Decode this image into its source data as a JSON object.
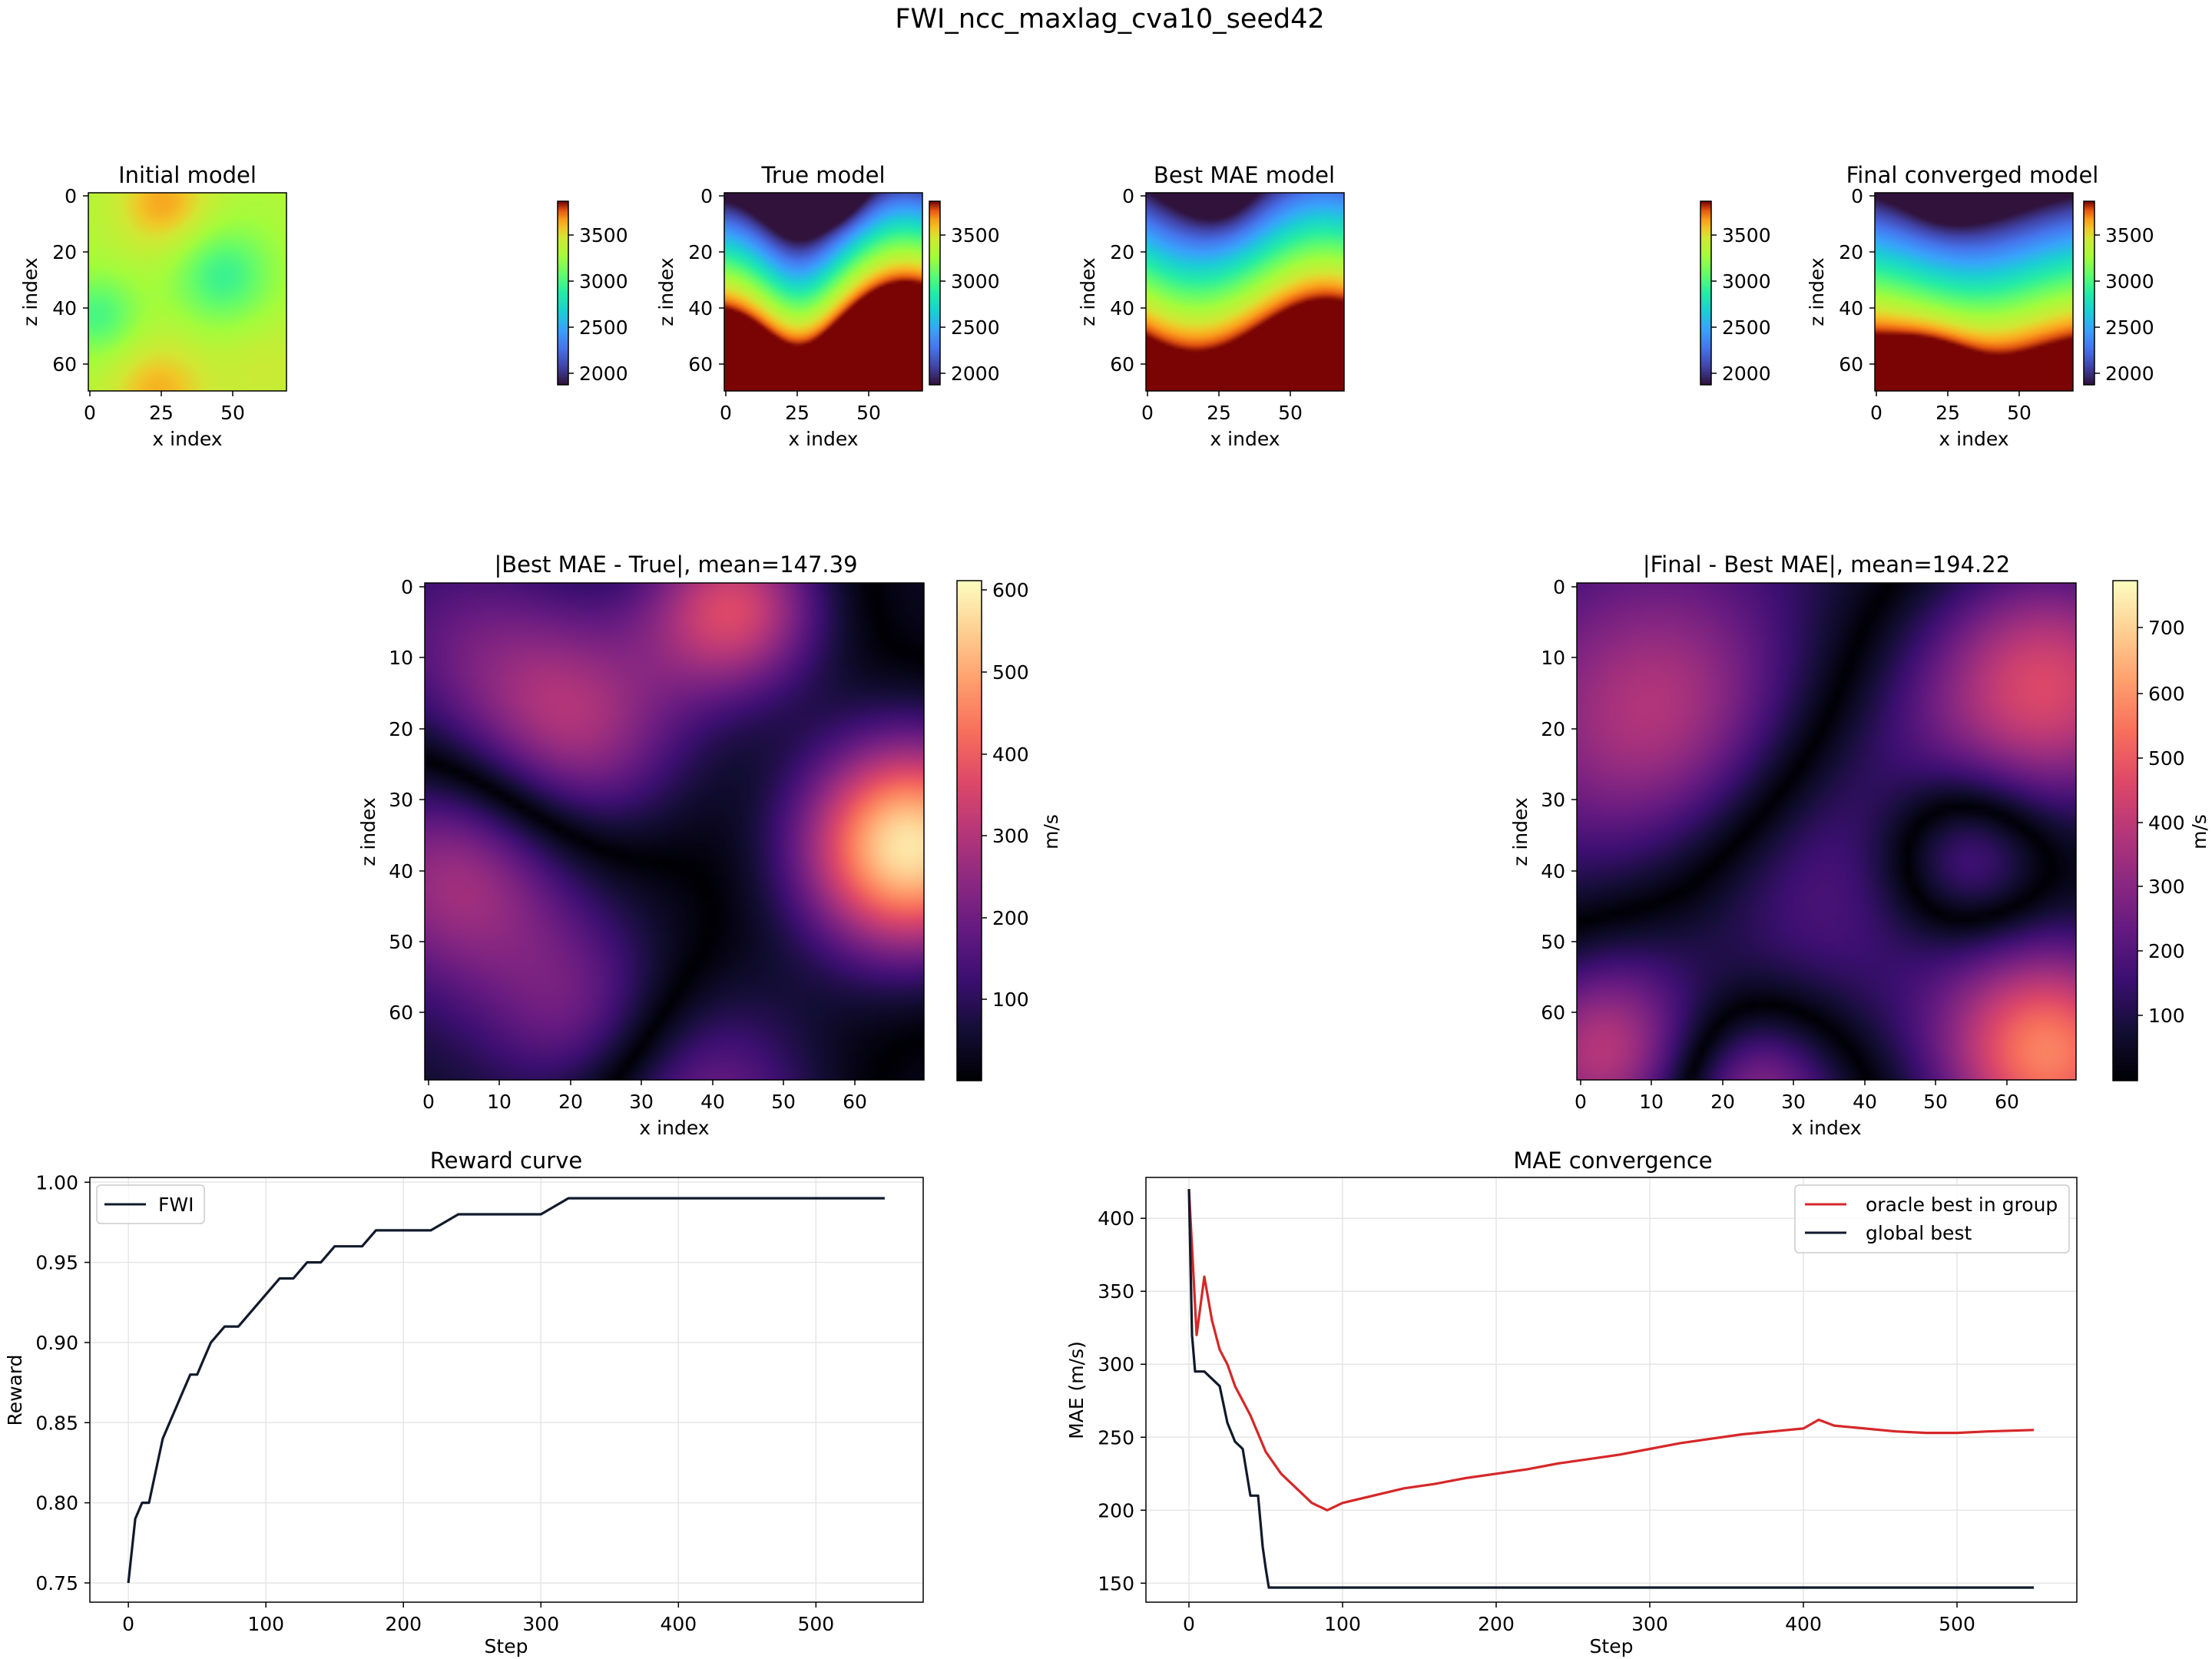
{
  "figure": {
    "title": "FWI_ncc_maxlag_cva10_seed42"
  },
  "models": {
    "initial_title": "Initial model",
    "true_title": "True model",
    "bestmae_title": "Best MAE model",
    "final_title": "Final converged model",
    "xlabel": "x index",
    "ylabel": "z index",
    "xticks": [
      "0",
      "25",
      "50"
    ],
    "yticks": [
      "0",
      "20",
      "40",
      "60"
    ],
    "colorbar_ticks": [
      "3500",
      "3000",
      "2500",
      "2000"
    ],
    "colormap": "turbo",
    "vmin": 1900,
    "vmax": 3900
  },
  "diffs": {
    "left_title": "|Best MAE - True|, mean=147.39",
    "right_title": "|Final - Best MAE|, mean=194.22",
    "xlabel": "x index",
    "ylabel": "z index",
    "xticks": [
      "0",
      "10",
      "20",
      "30",
      "40",
      "50",
      "60"
    ],
    "yticks": [
      "0",
      "10",
      "20",
      "30",
      "40",
      "50",
      "60"
    ],
    "left_colorbar_ticks": [
      "600",
      "500",
      "400",
      "300",
      "200",
      "100"
    ],
    "right_colorbar_ticks": [
      "700",
      "600",
      "500",
      "400",
      "300",
      "200",
      "100"
    ],
    "colorbar_label": "m/s",
    "colormap": "magma"
  },
  "chart_data": [
    {
      "type": "line",
      "title": "Reward curve",
      "xlabel": "Step",
      "ylabel": "Reward",
      "xlim": [
        -28,
        578
      ],
      "ylim": [
        0.738,
        1.003
      ],
      "xticks": [
        "0",
        "100",
        "200",
        "300",
        "400",
        "500"
      ],
      "yticks": [
        "1.00",
        "0.95",
        "0.90",
        "0.85",
        "0.80",
        "0.75"
      ],
      "grid": true,
      "legend_position": "upper-left",
      "series": [
        {
          "name": "FWI",
          "color": "#111a2c",
          "x": [
            0,
            5,
            10,
            15,
            20,
            25,
            30,
            35,
            40,
            45,
            50,
            55,
            60,
            70,
            80,
            90,
            100,
            110,
            120,
            130,
            140,
            150,
            160,
            170,
            180,
            190,
            200,
            220,
            240,
            260,
            280,
            300,
            320,
            330,
            340,
            360,
            400,
            450,
            500,
            550
          ],
          "y": [
            0.75,
            0.79,
            0.8,
            0.8,
            0.82,
            0.84,
            0.85,
            0.86,
            0.87,
            0.88,
            0.88,
            0.89,
            0.9,
            0.91,
            0.91,
            0.92,
            0.93,
            0.94,
            0.94,
            0.95,
            0.95,
            0.96,
            0.96,
            0.96,
            0.97,
            0.97,
            0.97,
            0.97,
            0.98,
            0.98,
            0.98,
            0.98,
            0.99,
            0.99,
            0.99,
            0.99,
            0.99,
            0.99,
            0.99,
            0.99
          ]
        }
      ]
    },
    {
      "type": "line",
      "title": "MAE convergence",
      "xlabel": "Step",
      "ylabel": "MAE (m/s)",
      "xlim": [
        -28,
        578
      ],
      "ylim": [
        137,
        428
      ],
      "xticks": [
        "0",
        "100",
        "200",
        "300",
        "400",
        "500"
      ],
      "yticks": [
        "400",
        "350",
        "300",
        "250",
        "200",
        "150"
      ],
      "grid": true,
      "legend_position": "upper-right",
      "series": [
        {
          "name": "oracle best in group",
          "color": "#d62728",
          "x": [
            0,
            5,
            10,
            15,
            20,
            25,
            30,
            40,
            50,
            60,
            70,
            80,
            90,
            100,
            120,
            140,
            160,
            180,
            200,
            220,
            240,
            260,
            280,
            300,
            320,
            340,
            360,
            380,
            400,
            410,
            420,
            440,
            460,
            480,
            500,
            520,
            550
          ],
          "y": [
            420,
            320,
            360,
            330,
            310,
            300,
            285,
            265,
            240,
            225,
            215,
            205,
            200,
            205,
            210,
            215,
            218,
            222,
            225,
            228,
            232,
            235,
            238,
            242,
            246,
            249,
            252,
            254,
            256,
            262,
            258,
            256,
            254,
            253,
            253,
            254,
            255
          ]
        },
        {
          "name": "global best",
          "color": "#111a2c",
          "x": [
            0,
            2,
            4,
            10,
            20,
            25,
            30,
            35,
            40,
            45,
            48,
            50,
            52,
            100,
            200,
            300,
            400,
            500,
            550
          ],
          "y": [
            420,
            320,
            295,
            295,
            285,
            260,
            247,
            242,
            210,
            210,
            175,
            160,
            147,
            147,
            147,
            147,
            147,
            147,
            147
          ]
        }
      ]
    }
  ]
}
